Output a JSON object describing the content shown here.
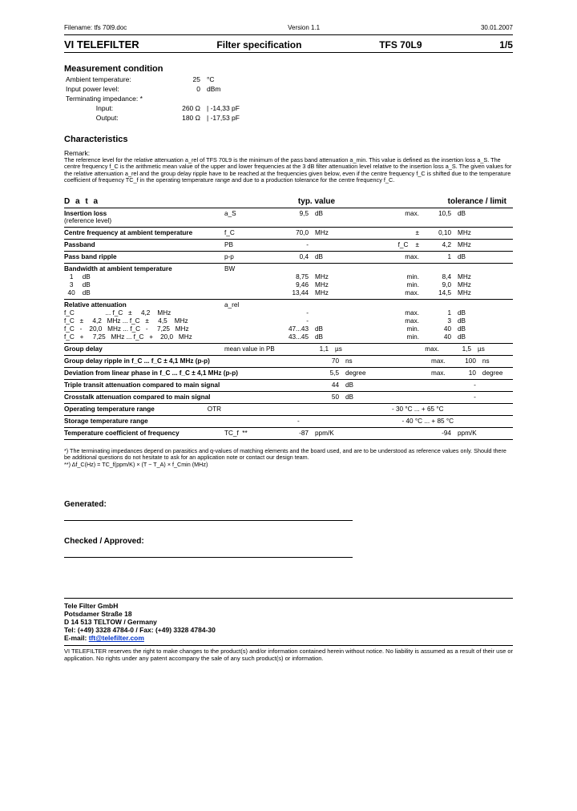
{
  "meta": {
    "filename": "Filename: tfs 70l9.doc",
    "version": "Version 1.1",
    "date": "30.01.2007"
  },
  "header": {
    "brand": "VI TELEFILTER",
    "title": "Filter specification",
    "part": "TFS 70L9",
    "page": "1/5"
  },
  "meas": {
    "title": "Measurement condition",
    "rows": [
      {
        "l": "Ambient temperature:",
        "v": "25",
        "u": "°C"
      },
      {
        "l": "Input power level:",
        "v": "0",
        "u": "dBm"
      },
      {
        "l": "Terminating impedance: *",
        "v": "",
        "u": ""
      },
      {
        "l": "                Input:",
        "v": "260 Ω",
        "u": "| -14,33 pF"
      },
      {
        "l": "                Output:",
        "v": "180 Ω",
        "u": "| -17,53 pF"
      }
    ]
  },
  "char_title": "Characteristics",
  "remark_title": "Remark:",
  "remark_text": "The reference level for the relative attenuation a_rel of TFS 70L9 is the minimum of the pass band attenuation a_min. This value is defined as the insertion loss a_S. The centre frequency f_C is the arithmetic mean value of the upper and lower frequencies at the 3 dB filter attenuation level relative to the insertion loss a_S. The given values for the relative attenuation a_rel and the group delay ripple have to be reached at the frequencies given below, even if the centre frequency f_C is shifted due to the temperature coefficient of frequency TC_f in the operating temperature range and due to a production tolerance for the centre frequency f_C.",
  "data_head": {
    "c1": "D a t a",
    "c2": "typ. value",
    "c3": "tolerance / limit"
  },
  "rows": [
    {
      "type": "simple",
      "lab": "Insertion loss",
      "lab2": "(reference level)",
      "sym": "a_S",
      "tv": "9,5",
      "tu": "dB",
      "tol": "max.",
      "lv": "10,5",
      "lu": "dB",
      "bold": true
    },
    {
      "type": "simple",
      "lab": "Centre frequency at ambient temperature",
      "sym": "f_C",
      "tv": "70,0",
      "tu": "MHz",
      "tol": "±",
      "lv": "0,10",
      "lu": "MHz",
      "bold": true
    },
    {
      "type": "simple",
      "lab": "Passband",
      "sym": "PB",
      "tv": "-",
      "tu": "",
      "tol": "f_C    ±",
      "lv": "4,2",
      "lu": "MHz",
      "bold": true
    },
    {
      "type": "simple",
      "lab": "Pass band ripple",
      "sym": "p-p",
      "tv": "0,4",
      "tu": "dB",
      "tol": "max.",
      "lv": "1",
      "lu": "dB",
      "bold": true
    },
    {
      "type": "group",
      "lab": "Bandwidth at ambient temperature",
      "sym": "BW",
      "sub": [
        {
          "lab": "   1     dB",
          "tv": "8,75",
          "tu": "MHz",
          "tol": "min.",
          "lv": "8,4",
          "lu": "MHz"
        },
        {
          "lab": "   3     dB",
          "tv": "9,46",
          "tu": "MHz",
          "tol": "min.",
          "lv": "9,0",
          "lu": "MHz"
        },
        {
          "lab": "  40    dB",
          "tv": "13,44",
          "tu": "MHz",
          "tol": "max.",
          "lv": "14,5",
          "lu": "MHz"
        }
      ]
    },
    {
      "type": "group",
      "lab": "Relative attenuation",
      "sym": "a_rel",
      "sub": [
        {
          "lab": "f_C                 ... f_C   ±     4,2    MHz",
          "tv": "-",
          "tu": "",
          "tol": "max.",
          "lv": "1",
          "lu": "dB"
        },
        {
          "lab": "f_C   ±     4,2   MHz ... f_C   ±     4,5    MHz",
          "tv": "-",
          "tu": "",
          "tol": "max.",
          "lv": "3",
          "lu": "dB"
        },
        {
          "lab": "f_C   -    20,0   MHz ... f_C   -     7,25   MHz",
          "tv": "47...43",
          "tu": "dB",
          "tol": "min.",
          "lv": "40",
          "lu": "dB"
        },
        {
          "lab": "f_C   +     7,25   MHz ... f_C   +    20,0   MHz",
          "tv": "43...45",
          "tu": "dB",
          "tol": "min.",
          "lv": "40",
          "lu": "dB"
        }
      ]
    },
    {
      "type": "simple",
      "lab": "Group delay",
      "sym": "mean value in PB",
      "symwide": true,
      "tv": "1,1",
      "tu": "µs",
      "tol": "max.",
      "lv": "1,5",
      "lu": "µs",
      "bold": true
    },
    {
      "type": "simple",
      "lab": "Group delay ripple in f_C ... f_C ± 4,1 MHz (p-p)",
      "sym": "",
      "tv": "70",
      "tu": "ns",
      "tol": "max.",
      "lv": "100",
      "lu": "ns",
      "bold": true
    },
    {
      "type": "simple",
      "lab": "Deviation from linear phase in f_C ... f_C ± 4,1 MHz (p-p)",
      "sym": "",
      "tv": "5,5",
      "tu": "degree",
      "tol": "max.",
      "lv": "10",
      "lu": "degree",
      "bold": true
    },
    {
      "type": "simple",
      "lab": "Triple transit attenuation compared to main signal",
      "sym": "",
      "tv": "44",
      "tu": "dB",
      "tol": "",
      "lv": "-",
      "lu": "",
      "bold": true
    },
    {
      "type": "simple",
      "lab": "Crosstalk attenuation compared to main signal",
      "sym": "",
      "tv": "50",
      "tu": "dB",
      "tol": "",
      "lv": "-",
      "lu": "",
      "bold": true
    },
    {
      "type": "simple",
      "lab": "Operating temperature range",
      "sym": "OTR",
      "tv": "",
      "tu": "",
      "tol": "",
      "lv": "- 30 °C ... + 65 °C",
      "lu": "",
      "bold": true,
      "lvwide": true
    },
    {
      "type": "simple",
      "lab": "Storage temperature range",
      "sym": "",
      "tv": "-",
      "tu": "",
      "tol": "",
      "lv": "- 40 °C ... + 85 °C",
      "lu": "",
      "bold": true,
      "lvwide": true
    },
    {
      "type": "simple",
      "lab": "Temperature coefficient of frequency",
      "sym": "TC_f  **",
      "tv": "-87",
      "tu": "ppm/K",
      "tol": "",
      "lv": "-94",
      "lu": "ppm/K",
      "bold": true,
      "last": true
    }
  ],
  "footnotes": [
    "*) The terminating impedances depend on parasitics and q-values of matching elements and the board used, and are to be understood as reference values only. Should there be additional questions do not hesitate to ask for an application note or contact our design team.",
    "**) Δf_C(Hz) = TC_f(ppm/K) × (T − T_A) × f_Cmin (MHz)"
  ],
  "sig": {
    "gen": "Generated:",
    "chk": "Checked / Approved:"
  },
  "company": {
    "name": "Tele Filter GmbH",
    "addr1": "Potsdamer Straße 18",
    "addr2": "D 14 513 TELTOW / Germany",
    "tel": "Tel: (+49) 3328 4784-0 / Fax: (+49) 3328 4784-30",
    "email_lab": "E-mail: ",
    "email": "tft@telefilter.com"
  },
  "disclaimer": "VI TELEFILTER reserves the right to make changes to the product(s) and/or information contained herein without notice. No liability is assumed as a result of their use or application. No rights under any patent accompany the sale of any such product(s) or information."
}
